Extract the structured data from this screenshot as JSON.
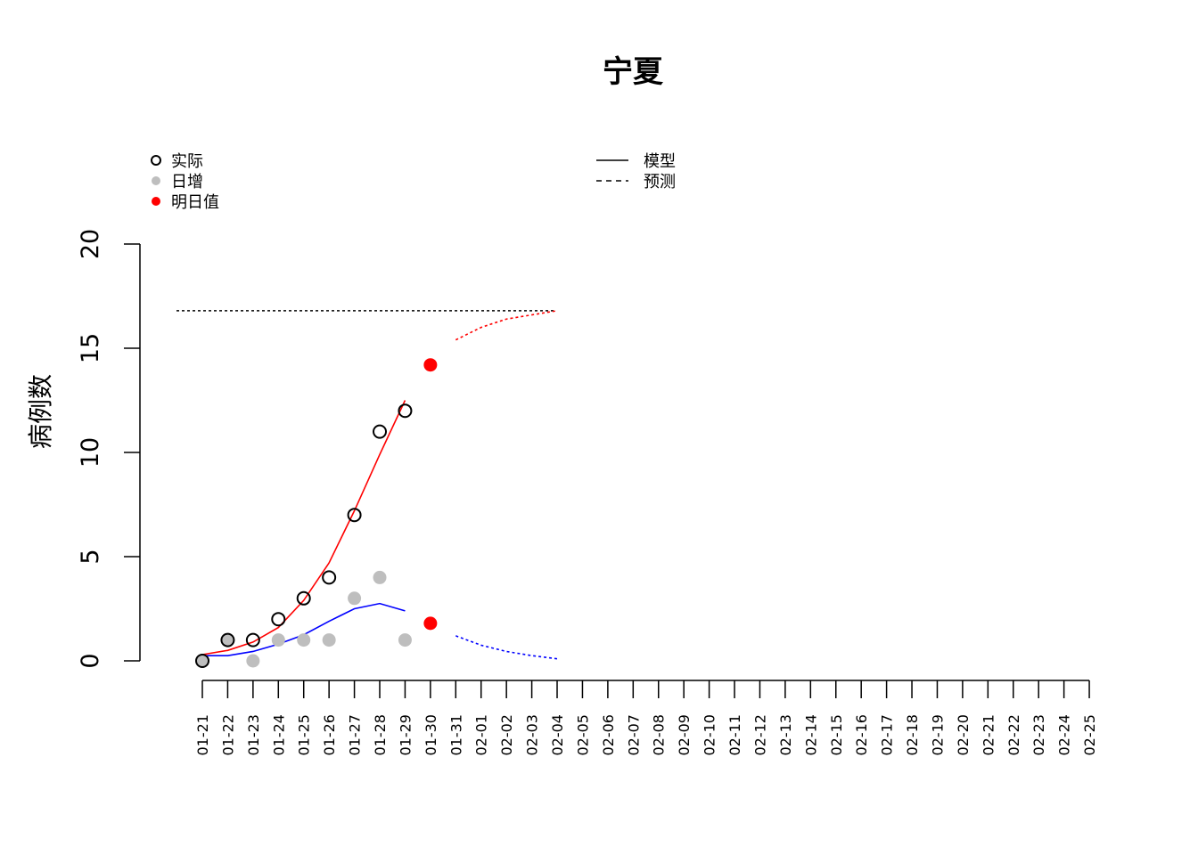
{
  "chart_data": {
    "type": "line",
    "title": "宁夏",
    "xlabel": "",
    "ylabel": "病例数",
    "ylim": [
      0,
      20
    ],
    "yticks": [
      "0",
      "5",
      "10",
      "15",
      "20"
    ],
    "categories": [
      "01-21",
      "01-22",
      "01-23",
      "01-24",
      "01-25",
      "01-26",
      "01-27",
      "01-28",
      "01-29",
      "01-30",
      "01-31",
      "02-01",
      "02-02",
      "02-03",
      "02-04",
      "02-05",
      "02-06",
      "02-07",
      "02-08",
      "02-09",
      "02-10",
      "02-11",
      "02-12",
      "02-13",
      "02-14",
      "02-15",
      "02-16",
      "02-17",
      "02-18",
      "02-19",
      "02-20",
      "02-21",
      "02-22",
      "02-23",
      "02-24",
      "02-25"
    ],
    "actual": [
      0,
      1,
      1,
      2,
      3,
      4,
      7,
      11,
      12
    ],
    "daily_increase": [
      0,
      1,
      0,
      1,
      1,
      1,
      3,
      4,
      1
    ],
    "next_day_cumulative": 14.2,
    "next_day_increase": 1.8,
    "model_cumulative": [
      0.3,
      0.5,
      0.9,
      1.6,
      2.9,
      4.7,
      7.2,
      9.9,
      12.5
    ],
    "model_daily": [
      0.25,
      0.25,
      0.45,
      0.8,
      1.25,
      1.9,
      2.5,
      2.75,
      2.4
    ],
    "forecast_cumulative": [
      15.4,
      16.0,
      16.4,
      16.6,
      16.8
    ],
    "forecast_daily": [
      1.2,
      0.75,
      0.45,
      0.25,
      0.1
    ],
    "plateau": 16.8,
    "colors": {
      "actual": "#000000",
      "daily": "#bebebe",
      "next_day": "#ff0000",
      "cumulative_line": "#ff0000",
      "daily_line": "#0000ff",
      "plateau_line": "#000000"
    },
    "legend_left": [
      {
        "label": "实际",
        "marker": "open-circle"
      },
      {
        "label": "日增",
        "marker": "gray-dot"
      },
      {
        "label": "明日值",
        "marker": "red-dot"
      }
    ],
    "legend_right": [
      {
        "label": "模型",
        "line": "solid"
      },
      {
        "label": "预测",
        "line": "dashed"
      }
    ],
    "legend_placement": "top"
  }
}
